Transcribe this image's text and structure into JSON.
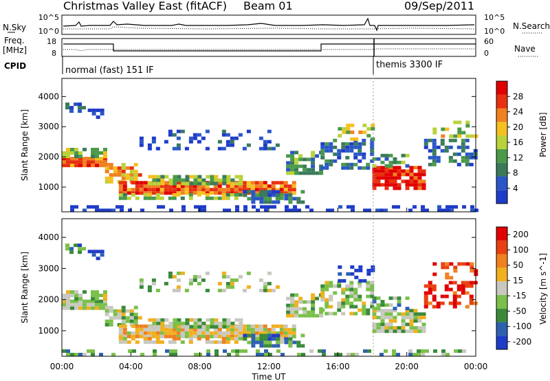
{
  "header": {
    "title": "Christmas Valley East (fitACF)",
    "beam": "Beam 01",
    "date": "09/Sep/2011"
  },
  "noise_panel": {
    "left_label": "N.Sky",
    "right_label": "N.Search",
    "ticks_left": [
      "10^5",
      "10^0"
    ],
    "ticks_right": [
      "10^5",
      "10^0"
    ]
  },
  "freq_panel": {
    "left_label_1": "Freq.",
    "left_label_2": "[MHz]",
    "right_label": "Nave",
    "ticks_left": [
      "18",
      "8"
    ],
    "ticks_right": [
      "60",
      "0"
    ]
  },
  "cpid": {
    "label": "CPID",
    "segments": [
      "normal (fast) 151 IF",
      "themis 3300 IF"
    ]
  },
  "colors": {
    "power_scale": [
      "#1e3cc8",
      "#2a56c8",
      "#3a7a5a",
      "#4a9a4a",
      "#b9d23a",
      "#f5c020",
      "#f08020",
      "#e83010",
      "#e00000"
    ],
    "velocity_scale": [
      "#1e3cc8",
      "#2e60b0",
      "#3a8a3a",
      "#7ac04a",
      "#c8c8c0",
      "#f0b020",
      "#f08020",
      "#e84010",
      "#e00000"
    ]
  },
  "chart_data": [
    {
      "type": "heatmap",
      "name": "power",
      "ylabel": "Slant Range [km]",
      "ylim": [
        180,
        4600
      ],
      "yticks": [
        1000,
        2000,
        3000,
        4000
      ],
      "xlim": [
        0,
        24
      ],
      "colorbar": {
        "label": "Power [dB]",
        "range": [
          0,
          32
        ],
        "ticks": [
          4,
          8,
          12,
          16,
          20,
          24,
          28
        ]
      }
    },
    {
      "type": "heatmap",
      "name": "velocity",
      "ylabel": "Slant Range [km]",
      "ylim": [
        180,
        4600
      ],
      "yticks": [
        1000,
        2000,
        3000,
        4000
      ],
      "xlim": [
        0,
        24
      ],
      "colorbar": {
        "label": "Velocity [m s^-1]",
        "ticks": [
          200,
          100,
          50,
          15,
          -15,
          -50,
          -100,
          -200
        ]
      }
    }
  ],
  "xaxis": {
    "label": "Time UT",
    "ticks": [
      "00:00",
      "04:00",
      "08:00",
      "12:00",
      "16:00",
      "20:00",
      "00:00"
    ],
    "tick_hours": [
      0,
      4,
      8,
      12,
      16,
      20,
      24
    ]
  }
}
